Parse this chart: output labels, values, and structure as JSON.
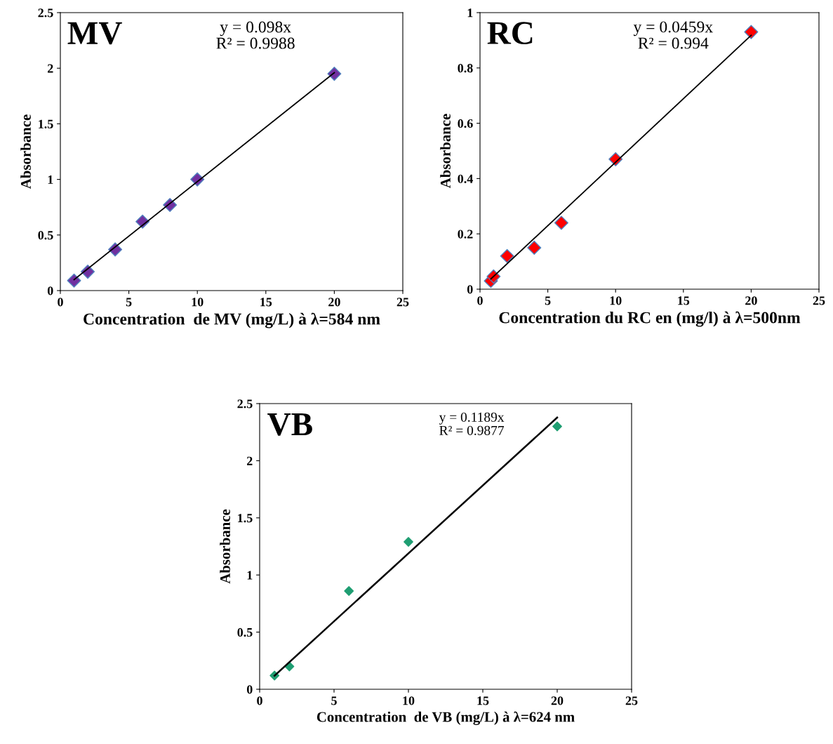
{
  "chart_data": [
    {
      "type": "scatter",
      "xlabel": "Concentration  de MV (mg/L) à λ=584 nm",
      "ylabel": "Absorbance",
      "annotations": [
        "MV",
        "y = 0.098x\nR² = 0.9988"
      ],
      "xlim": [
        0,
        25
      ],
      "xticks": [
        0,
        5,
        10,
        15,
        20,
        25
      ],
      "ylim": [
        0,
        2.5
      ],
      "yticks": [
        0,
        0.5,
        1,
        1.5,
        2,
        2.5
      ],
      "series": [
        {
          "color": "#7030a0",
          "marker": "diamond",
          "x": [
            1,
            2,
            4,
            6,
            8,
            10,
            20
          ],
          "values": [
            0.09,
            0.17,
            0.37,
            0.62,
            0.77,
            1.0,
            1.95
          ]
        },
        {
          "type": "line",
          "color": "#000000",
          "x": [
            1,
            20
          ],
          "values": [
            0.098,
            1.96
          ]
        }
      ]
    },
    {
      "type": "scatter",
      "xlabel": "Concentration du RC en (mg/l) à λ=500nm",
      "ylabel": "Absorbance",
      "annotations": [
        "RC",
        "y = 0.0459x\nR² = 0.994"
      ],
      "xlim": [
        0,
        25
      ],
      "xticks": [
        0,
        5,
        10,
        15,
        20,
        25
      ],
      "ylim": [
        0,
        1
      ],
      "yticks": [
        0,
        0.2,
        0.4,
        0.6,
        0.8,
        1
      ],
      "series": [
        {
          "color": "#ff0000",
          "marker": "diamond",
          "x": [
            0.8,
            1,
            2,
            4,
            6,
            10,
            20
          ],
          "values": [
            0.03,
            0.046,
            0.12,
            0.15,
            0.24,
            0.47,
            0.93
          ]
        },
        {
          "type": "line",
          "color": "#000000",
          "x": [
            0.8,
            20
          ],
          "values": [
            0.037,
            0.918
          ]
        }
      ]
    },
    {
      "type": "scatter",
      "xlabel": "Concentration  de VB (mg/L) à λ=624 nm",
      "ylabel": "Absorbance",
      "annotations": [
        "VB",
        "y = 0.1189x\nR² = 0.9877"
      ],
      "xlim": [
        0,
        25
      ],
      "xticks": [
        0,
        5,
        10,
        15,
        20,
        25
      ],
      "ylim": [
        0,
        2.5
      ],
      "yticks": [
        0,
        0.5,
        1,
        1.5,
        2,
        2.5
      ],
      "series": [
        {
          "color": "#1f9e72",
          "marker": "diamond",
          "x": [
            1,
            2,
            6,
            10,
            20
          ],
          "values": [
            0.12,
            0.2,
            0.86,
            1.29,
            2.3
          ]
        },
        {
          "type": "line",
          "color": "#000000",
          "x": [
            1,
            20
          ],
          "values": [
            0.119,
            2.378
          ]
        }
      ]
    }
  ]
}
